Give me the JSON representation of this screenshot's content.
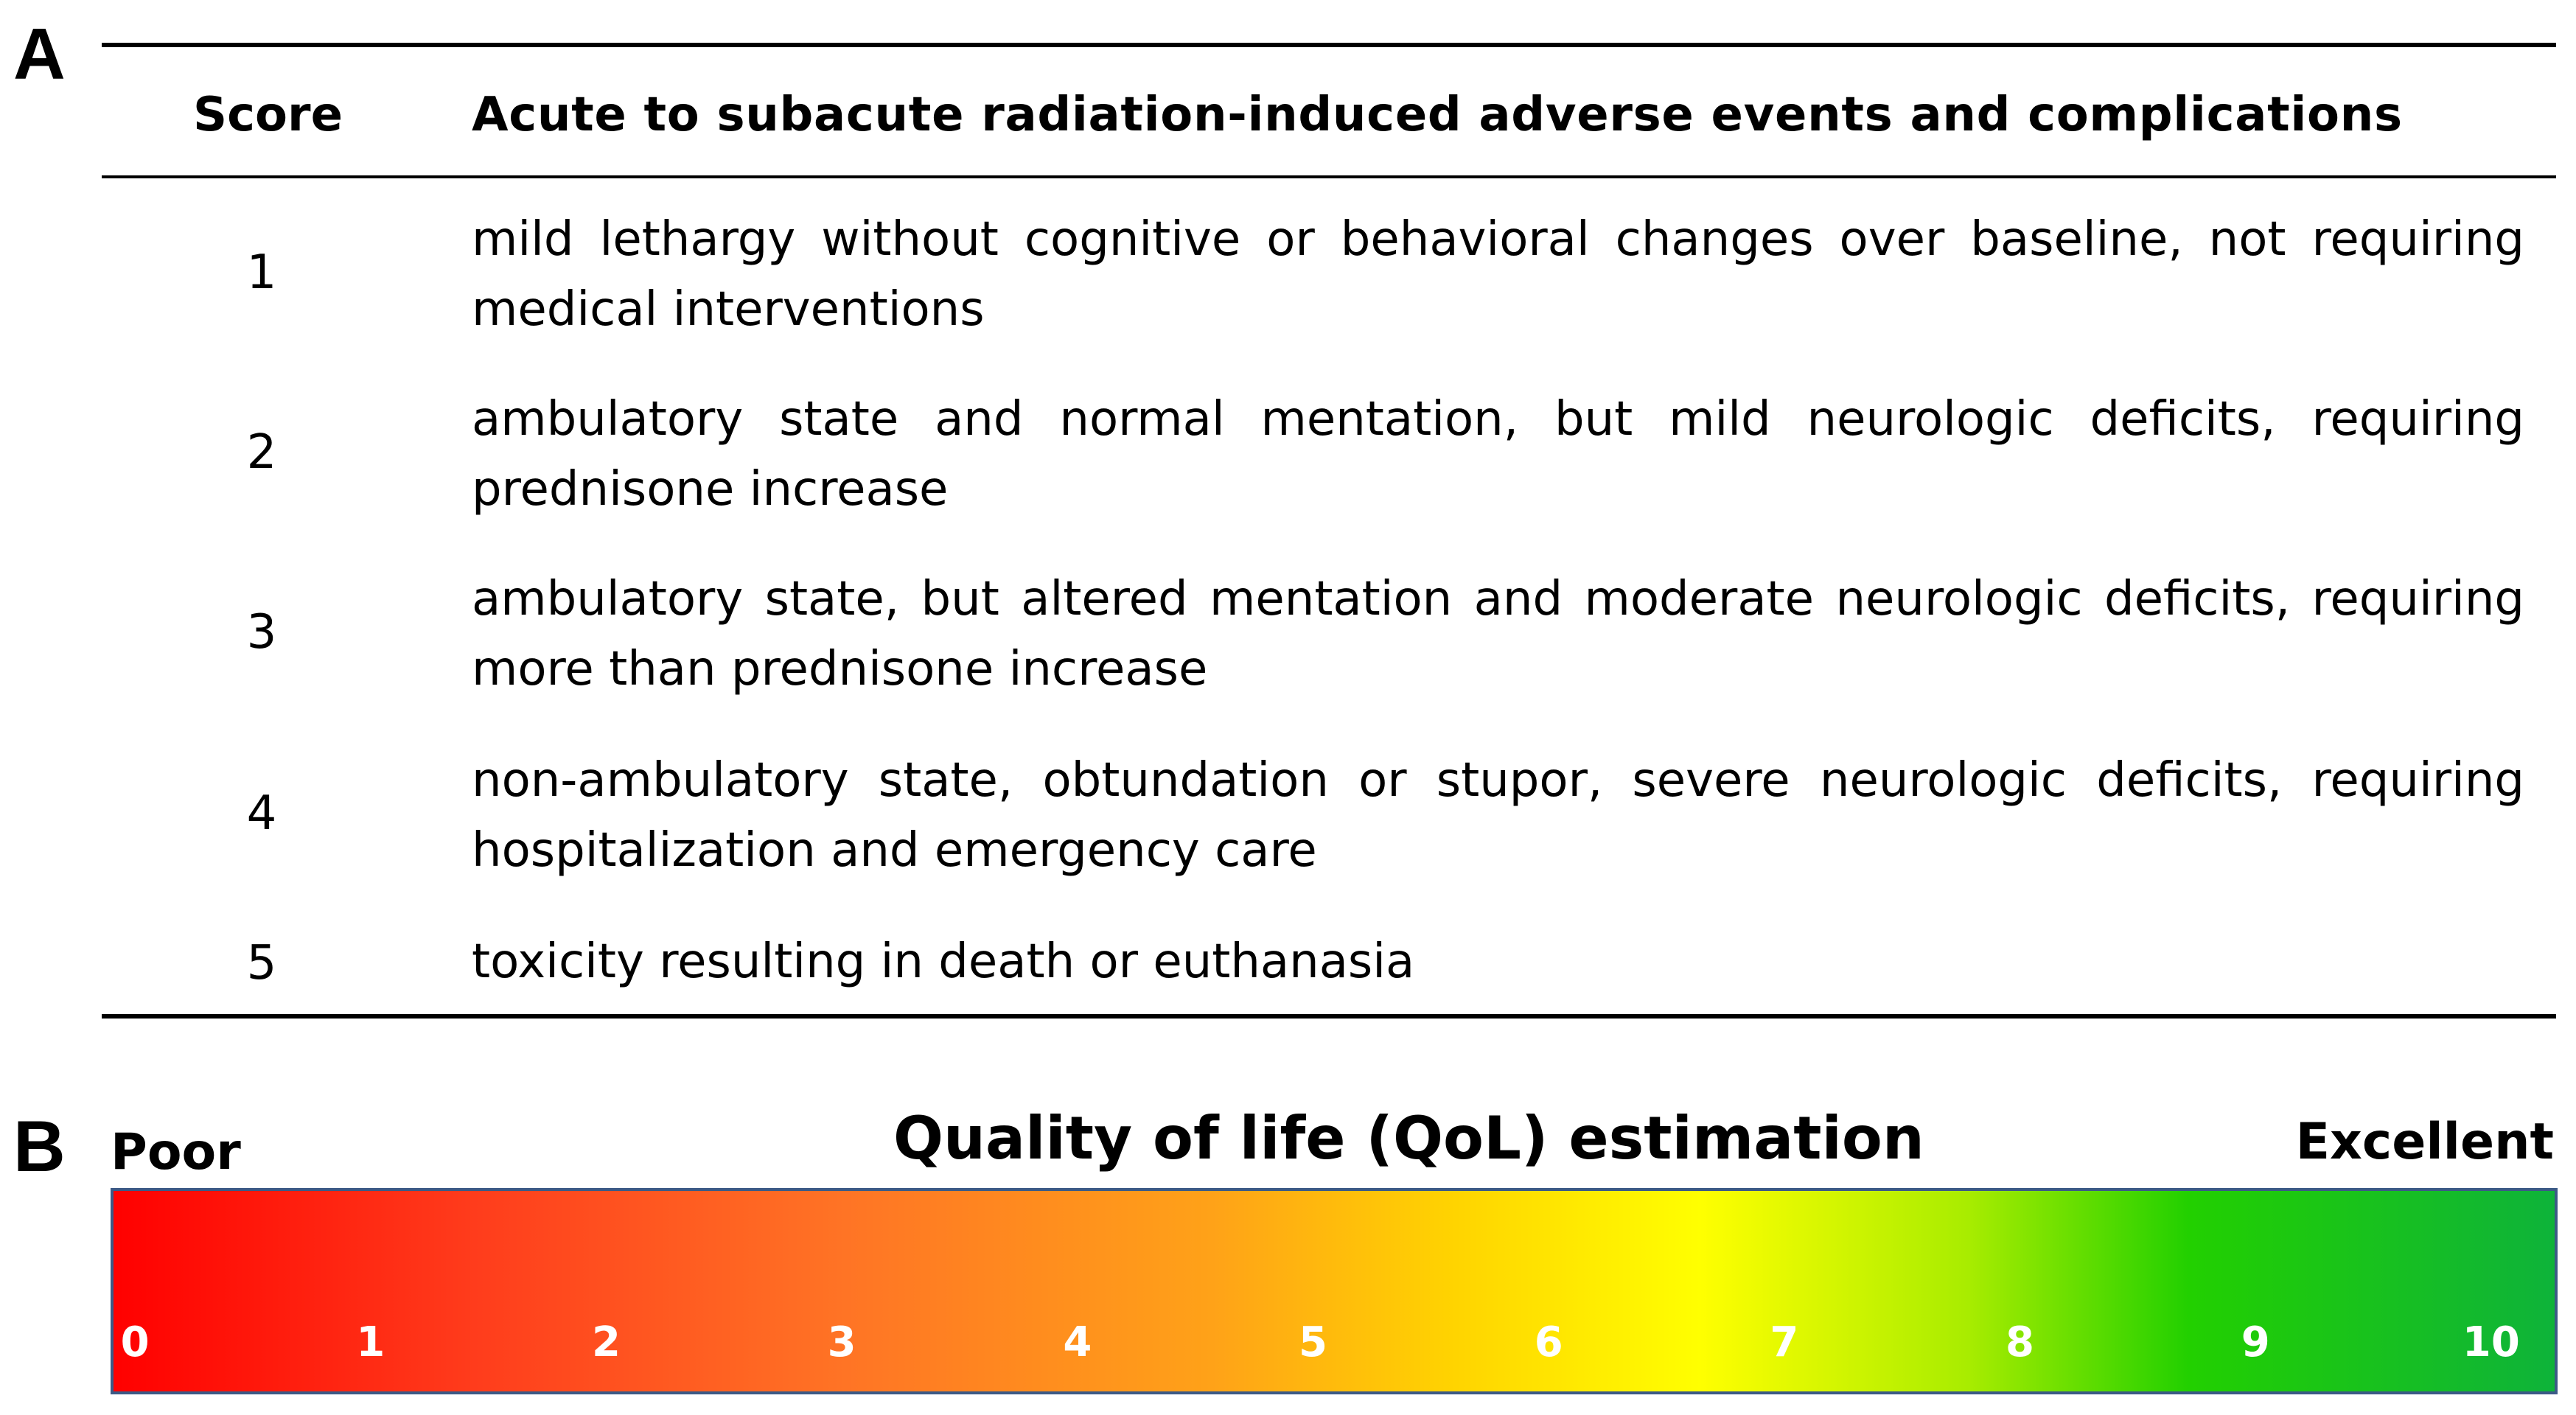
{
  "panel_a": {
    "letter": "A",
    "header": {
      "score": "Score",
      "events": "Acute to subacute radiation-induced adverse events and complications"
    },
    "rows": [
      {
        "score": "1",
        "line1": "mild lethargy without cognitive or behavioral changes over baseline, not requiring",
        "line2": "medical interventions"
      },
      {
        "score": "2",
        "line1": "ambulatory state and normal mentation, but mild neurologic deficits, requiring",
        "line2": "prednisone increase"
      },
      {
        "score": "3",
        "line1": "ambulatory state, but altered mentation and moderate neurologic deficits, requiring",
        "line2": "more than prednisone increase"
      },
      {
        "score": "4",
        "line1": "non-ambulatory state, obtundation or stupor, severe neurologic deficits, requiring",
        "line2": "hospitalization and emergency care"
      },
      {
        "score": "5",
        "line1": "toxicity resulting in death or euthanasia",
        "line2": ""
      }
    ]
  },
  "panel_b": {
    "letter": "B",
    "title": "Quality of life (QoL) estimation",
    "low_label": "Poor",
    "high_label": "Excellent",
    "scale": [
      "0",
      "1",
      "2",
      "3",
      "4",
      "5",
      "6",
      "7",
      "8",
      "9",
      "10"
    ],
    "gradient_colors": [
      "#ff0000",
      "#ff7425",
      "#ffd400",
      "#ffff00",
      "#22d000",
      "#0eb33a"
    ]
  }
}
